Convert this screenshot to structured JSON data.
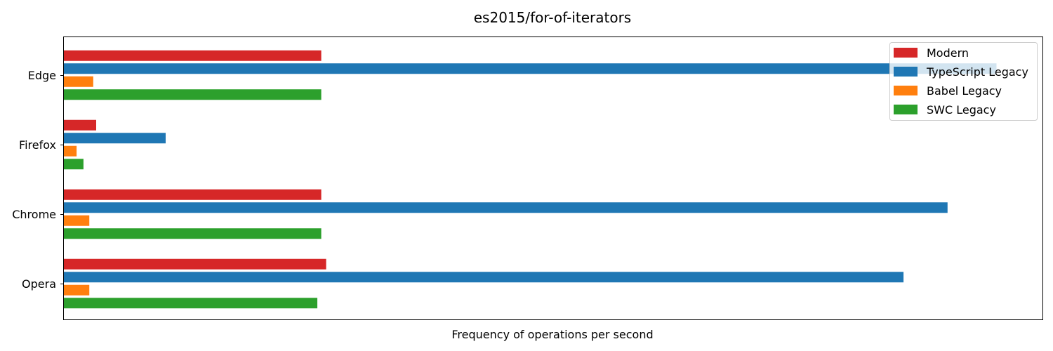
{
  "chart_data": {
    "type": "bar",
    "orientation": "horizontal",
    "title": "es2015/for-of-iterators",
    "xlabel": "Frequency of operations per second",
    "ylabel": "",
    "categories": [
      "Edge",
      "Firefox",
      "Chrome",
      "Opera"
    ],
    "xlim": [
      0,
      100
    ],
    "x_ticks_shown": false,
    "grid": false,
    "legend_position": "top-right",
    "series": [
      {
        "name": "Modern",
        "color": "#d62728",
        "values": [
          26.3,
          3.3,
          26.3,
          26.8
        ]
      },
      {
        "name": "TypeScript Legacy",
        "color": "#1f77b4",
        "values": [
          95.3,
          10.4,
          90.3,
          85.8
        ]
      },
      {
        "name": "Babel Legacy",
        "color": "#ff7f0e",
        "values": [
          3.0,
          1.3,
          2.6,
          2.6
        ]
      },
      {
        "name": "SWC Legacy",
        "color": "#2ca02c",
        "values": [
          26.3,
          2.0,
          26.3,
          25.9
        ]
      }
    ]
  }
}
